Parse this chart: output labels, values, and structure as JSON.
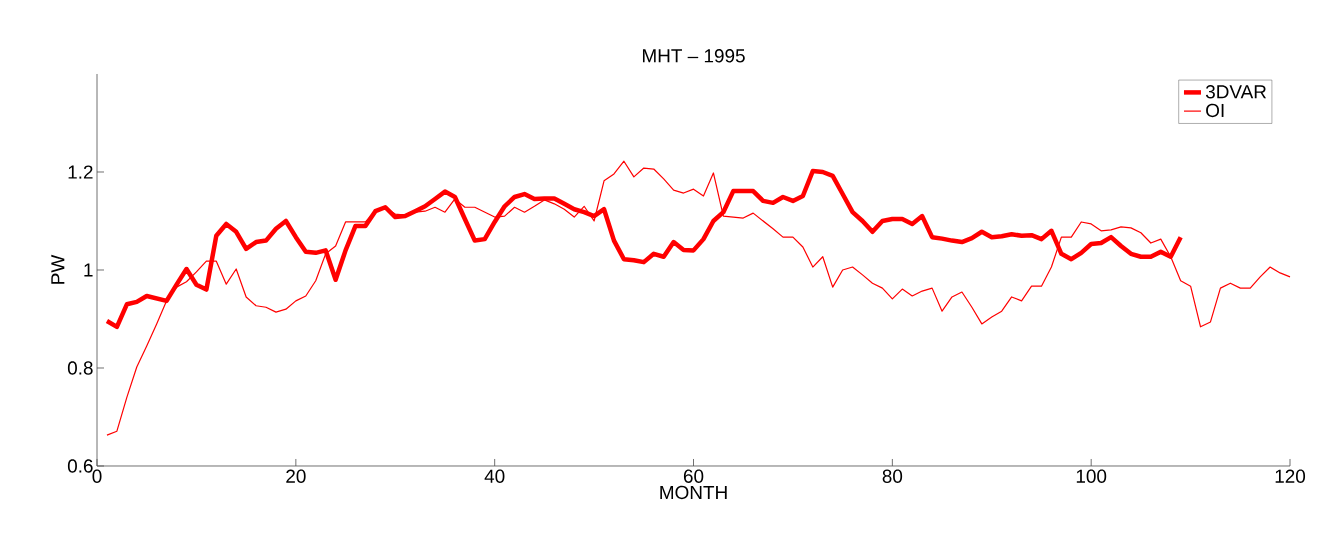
{
  "chart_data": {
    "type": "line",
    "title": "MHT – 1995",
    "xlabel": "MONTH",
    "ylabel": "PW",
    "xlim": [
      0,
      120
    ],
    "ylim": [
      0.6,
      1.4
    ],
    "xticks": [
      0,
      20,
      40,
      60,
      80,
      100,
      120
    ],
    "yticks": [
      0.6,
      0.8,
      1,
      1.2
    ],
    "legend": "top right",
    "series": [
      {
        "name": "3DVAR",
        "color": "#ff0000",
        "x": [
          1,
          2,
          3,
          4,
          5,
          6,
          7,
          8,
          9,
          10,
          11,
          12,
          13,
          14,
          15,
          16,
          17,
          18,
          19,
          20,
          21,
          22,
          23,
          24,
          25,
          26,
          27,
          28,
          29,
          30,
          31,
          32,
          33,
          34,
          35,
          36,
          37,
          38,
          39,
          40,
          41,
          42,
          43,
          44,
          45,
          46,
          47,
          48,
          49,
          50,
          51,
          52,
          53,
          54,
          55,
          56,
          57,
          58,
          59,
          60,
          61,
          62,
          63,
          64,
          65,
          66,
          67,
          68,
          69,
          70,
          71,
          72,
          73,
          74,
          75,
          76,
          77,
          78,
          79,
          80,
          81,
          82,
          83,
          84,
          85,
          86,
          87,
          88,
          89,
          90,
          91,
          92,
          93,
          94,
          95,
          96,
          97,
          98,
          99,
          100,
          101,
          102,
          103,
          104,
          105,
          106,
          107,
          108,
          109
        ],
        "values": [
          0.896,
          0.884,
          0.93,
          0.935,
          0.947,
          0.942,
          0.937,
          0.97,
          1.002,
          0.97,
          0.96,
          1.07,
          1.094,
          1.078,
          1.043,
          1.057,
          1.06,
          1.084,
          1.1,
          1.067,
          1.037,
          1.035,
          1.04,
          0.98,
          1.04,
          1.09,
          1.09,
          1.12,
          1.128,
          1.108,
          1.11,
          1.12,
          1.13,
          1.145,
          1.16,
          1.149,
          1.104,
          1.06,
          1.063,
          1.098,
          1.13,
          1.149,
          1.155,
          1.145,
          1.146,
          1.146,
          1.135,
          1.124,
          1.118,
          1.11,
          1.124,
          1.06,
          1.022,
          1.02,
          1.016,
          1.033,
          1.027,
          1.057,
          1.041,
          1.04,
          1.063,
          1.1,
          1.118,
          1.161,
          1.161,
          1.161,
          1.141,
          1.137,
          1.149,
          1.141,
          1.151,
          1.202,
          1.2,
          1.192,
          1.155,
          1.118,
          1.1,
          1.078,
          1.1,
          1.104,
          1.104,
          1.094,
          1.11,
          1.067,
          1.064,
          1.06,
          1.057,
          1.065,
          1.078,
          1.067,
          1.069,
          1.073,
          1.07,
          1.071,
          1.063,
          1.08,
          1.033,
          1.022,
          1.035,
          1.053,
          1.055,
          1.067,
          1.049,
          1.033,
          1.027,
          1.027,
          1.037,
          1.027,
          1.067
        ]
      },
      {
        "name": "OI",
        "color": "#ff0000",
        "x": [
          1,
          2,
          3,
          4,
          5,
          6,
          7,
          8,
          9,
          10,
          11,
          12,
          13,
          14,
          15,
          16,
          17,
          18,
          19,
          20,
          21,
          22,
          23,
          24,
          25,
          26,
          27,
          28,
          29,
          30,
          31,
          32,
          33,
          34,
          35,
          36,
          37,
          38,
          39,
          40,
          41,
          42,
          43,
          44,
          45,
          46,
          47,
          48,
          49,
          50,
          51,
          52,
          53,
          54,
          55,
          56,
          57,
          58,
          59,
          60,
          61,
          62,
          63,
          64,
          65,
          66,
          67,
          68,
          69,
          70,
          71,
          72,
          73,
          74,
          75,
          76,
          77,
          78,
          79,
          80,
          81,
          82,
          83,
          84,
          85,
          86,
          87,
          88,
          89,
          90,
          91,
          92,
          93,
          94,
          95,
          96,
          97,
          98,
          99,
          100,
          101,
          102,
          103,
          104,
          105,
          106,
          107,
          108,
          109,
          110,
          111,
          112,
          113,
          114,
          115,
          116,
          117,
          118,
          119,
          120
        ],
        "values": [
          0.663,
          0.671,
          0.74,
          0.802,
          0.845,
          0.89,
          0.937,
          0.965,
          0.976,
          0.996,
          1.018,
          1.018,
          0.971,
          1.002,
          0.945,
          0.927,
          0.924,
          0.914,
          0.92,
          0.937,
          0.947,
          0.978,
          1.033,
          1.049,
          1.098,
          1.098,
          1.098,
          1.12,
          1.126,
          1.114,
          1.112,
          1.118,
          1.12,
          1.128,
          1.118,
          1.145,
          1.128,
          1.128,
          1.118,
          1.108,
          1.11,
          1.128,
          1.118,
          1.13,
          1.143,
          1.135,
          1.124,
          1.108,
          1.13,
          1.1,
          1.182,
          1.196,
          1.222,
          1.19,
          1.208,
          1.206,
          1.186,
          1.163,
          1.157,
          1.165,
          1.151,
          1.198,
          1.11,
          1.108,
          1.106,
          1.116,
          1.1,
          1.084,
          1.067,
          1.067,
          1.047,
          1.006,
          1.027,
          0.965,
          1.0,
          1.006,
          0.99,
          0.973,
          0.963,
          0.941,
          0.961,
          0.947,
          0.957,
          0.963,
          0.916,
          0.945,
          0.955,
          0.924,
          0.89,
          0.904,
          0.916,
          0.945,
          0.937,
          0.967,
          0.967,
          1.006,
          1.067,
          1.067,
          1.098,
          1.094,
          1.08,
          1.082,
          1.088,
          1.086,
          1.076,
          1.055,
          1.063,
          1.027,
          0.978,
          0.967,
          0.884,
          0.894,
          0.963,
          0.973,
          0.963,
          0.963,
          0.986,
          1.006,
          0.994,
          0.986
        ]
      }
    ]
  }
}
